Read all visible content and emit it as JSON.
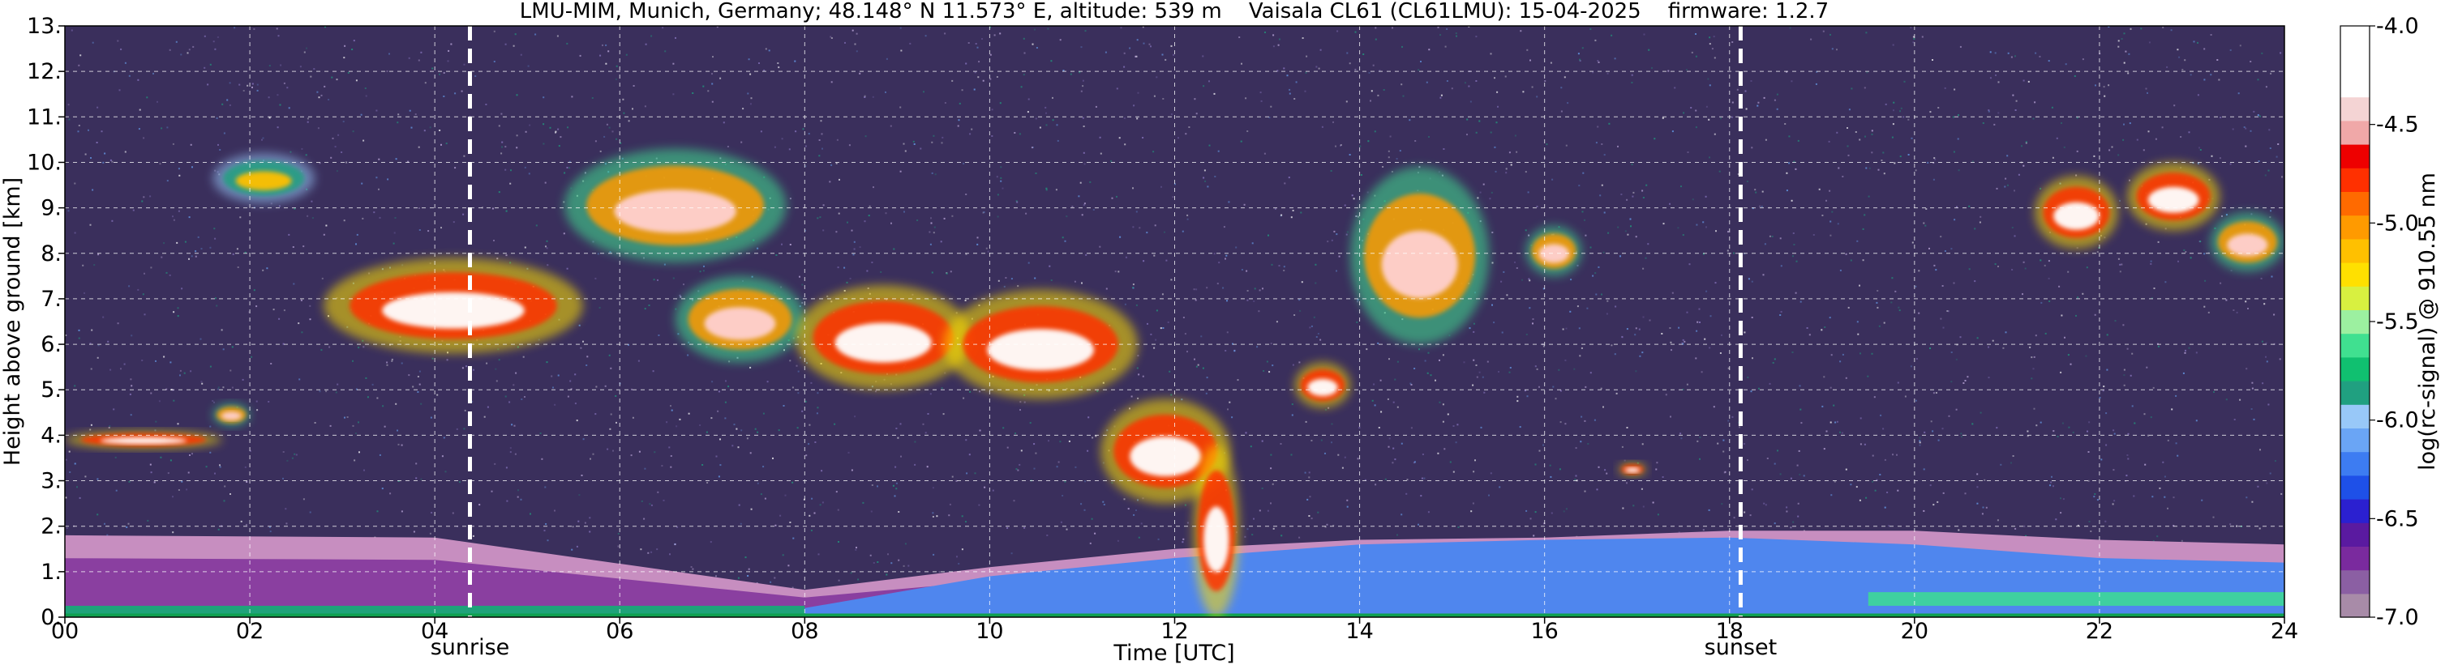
{
  "chart_data": {
    "type": "heatmap",
    "title": "LMU-MIM, Munich, Germany; 48.148° N 11.573° E, altitude: 539 m    Vaisala CL61 (CL61LMU): 15-04-2025    firmware: 1.2.7",
    "xlabel": "Time [UTC]",
    "ylabel": "Height above ground [km]",
    "xlim": [
      0,
      24
    ],
    "ylim": [
      0,
      13
    ],
    "x_ticks": [
      "00",
      "02",
      "04",
      "06",
      "08",
      "10",
      "12",
      "14",
      "16",
      "18",
      "20",
      "22",
      "24"
    ],
    "y_ticks": [
      "0.",
      "1.",
      "2.",
      "3.",
      "4.",
      "5.",
      "6.",
      "7.",
      "8.",
      "9.",
      "10.",
      "11.",
      "12.",
      "13."
    ],
    "grid": true,
    "events": [
      {
        "label": "sunrise",
        "time_hours": 4.38
      },
      {
        "label": "sunset",
        "time_hours": 18.12
      }
    ],
    "colorbar": {
      "label": "log(rc-signal) @ 910.55 nm",
      "range": [
        -7.0,
        -4.0
      ],
      "ticks": [
        "-4.0",
        "-4.5",
        "-5.0",
        "-5.5",
        "-6.0",
        "-6.5",
        "-7.0"
      ],
      "tick_values": [
        -4.0,
        -4.5,
        -5.0,
        -5.5,
        -6.0,
        -6.5,
        -7.0
      ],
      "colors": [
        "#a88ba8",
        "#8b5fa3",
        "#7a2a9e",
        "#5a1aa0",
        "#2b20d0",
        "#1e50e8",
        "#3d7cf2",
        "#6aa5f5",
        "#98c8f8",
        "#20a080",
        "#10c070",
        "#40e090",
        "#9cf0a0",
        "#d8f040",
        "#ffe000",
        "#ffc000",
        "#ff9a00",
        "#ff6a00",
        "#ff3000",
        "#ee0000",
        "#f0a8a8",
        "#f4d4d4",
        "#ffffff",
        "#ffffff",
        "#ffffff"
      ]
    },
    "background_signal": "#3a2f5c",
    "boundary_layer": [
      {
        "time": 0,
        "top_km": 1.8,
        "aerosol_top_km": 0.25
      },
      {
        "time": 4,
        "top_km": 1.75,
        "aerosol_top_km": 0.2
      },
      {
        "time": 8,
        "top_km": 0.6,
        "aerosol_top_km": 0.2
      },
      {
        "time": 10,
        "top_km": 1.1,
        "aerosol_top_km": 0.9
      },
      {
        "time": 12,
        "top_km": 1.5,
        "aerosol_top_km": 1.3
      },
      {
        "time": 14,
        "top_km": 1.7,
        "aerosol_top_km": 1.6
      },
      {
        "time": 16,
        "top_km": 1.75,
        "aerosol_top_km": 1.7
      },
      {
        "time": 18,
        "top_km": 1.9,
        "aerosol_top_km": 1.75
      },
      {
        "time": 20,
        "top_km": 1.9,
        "aerosol_top_km": 1.6
      },
      {
        "time": 22,
        "top_km": 1.7,
        "aerosol_top_km": 1.3
      },
      {
        "time": 24,
        "top_km": 1.6,
        "aerosol_top_km": 1.2
      }
    ],
    "cloud_layers": [
      {
        "t0": 2.8,
        "t1": 5.6,
        "base_km": 5.8,
        "top_km": 7.9,
        "intensity": "strong"
      },
      {
        "t0": 0.0,
        "t1": 1.7,
        "base_km": 3.7,
        "top_km": 4.1,
        "intensity": "strong"
      },
      {
        "t0": 1.6,
        "t1": 2.0,
        "base_km": 4.2,
        "top_km": 4.7,
        "intensity": "medium"
      },
      {
        "t0": 1.6,
        "t1": 2.7,
        "base_km": 9.1,
        "top_km": 10.2,
        "intensity": "weak"
      },
      {
        "t0": 5.4,
        "t1": 7.8,
        "base_km": 7.8,
        "top_km": 10.3,
        "intensity": "medium"
      },
      {
        "t0": 6.6,
        "t1": 8.0,
        "base_km": 5.6,
        "top_km": 7.5,
        "intensity": "medium"
      },
      {
        "t0": 7.9,
        "t1": 9.8,
        "base_km": 5.0,
        "top_km": 7.3,
        "intensity": "strong"
      },
      {
        "t0": 9.5,
        "t1": 11.6,
        "base_km": 4.8,
        "top_km": 7.2,
        "intensity": "strong"
      },
      {
        "t0": 11.2,
        "t1": 12.6,
        "base_km": 2.5,
        "top_km": 4.8,
        "intensity": "strong"
      },
      {
        "t0": 12.2,
        "t1": 12.7,
        "base_km": 0.0,
        "top_km": 3.8,
        "intensity": "strong"
      },
      {
        "t0": 13.3,
        "t1": 13.9,
        "base_km": 4.6,
        "top_km": 5.6,
        "intensity": "strong"
      },
      {
        "t0": 13.9,
        "t1": 15.4,
        "base_km": 6.0,
        "top_km": 9.9,
        "intensity": "medium"
      },
      {
        "t0": 15.8,
        "t1": 16.4,
        "base_km": 7.5,
        "top_km": 8.6,
        "intensity": "medium"
      },
      {
        "t0": 16.8,
        "t1": 17.1,
        "base_km": 3.1,
        "top_km": 3.4,
        "intensity": "strong"
      },
      {
        "t0": 21.3,
        "t1": 22.2,
        "base_km": 8.1,
        "top_km": 9.7,
        "intensity": "strong"
      },
      {
        "t0": 22.3,
        "t1": 23.3,
        "base_km": 8.5,
        "top_km": 10.0,
        "intensity": "strong"
      },
      {
        "t0": 23.2,
        "t1": 24.0,
        "base_km": 7.6,
        "top_km": 8.9,
        "intensity": "medium"
      }
    ]
  }
}
